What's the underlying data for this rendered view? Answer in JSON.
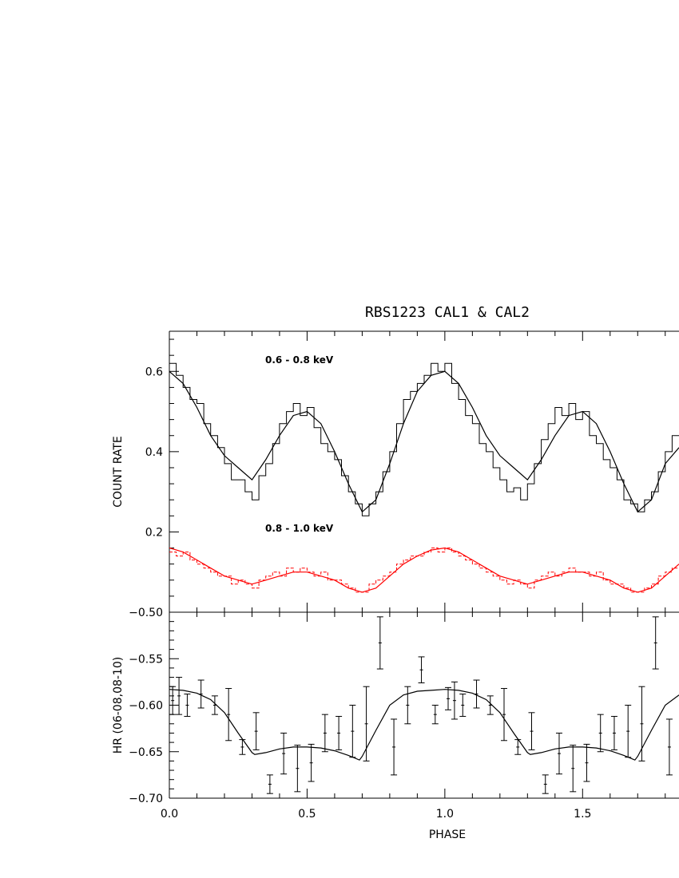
{
  "title": "RBS1223 CAL1 & CAL2",
  "chart_data": [
    {
      "type": "line",
      "panel": "top",
      "ylabel": "COUNT RATE",
      "xlim": [
        0.0,
        1.85
      ],
      "ylim": [
        0.0,
        0.7
      ],
      "yticks": [
        0.2,
        0.4,
        0.6
      ],
      "ytick_labels": [
        "0.2",
        "0.4",
        "0.6"
      ],
      "annotations": [
        "0.6 - 0.8 keV",
        "0.8 - 1.0 keV"
      ],
      "series": [
        {
          "color": "#000000",
          "style": "solid",
          "role": "model",
          "x": [
            0.0,
            0.05,
            0.1,
            0.15,
            0.2,
            0.25,
            0.3,
            0.35,
            0.4,
            0.45,
            0.5,
            0.55,
            0.6,
            0.65,
            0.7,
            0.75,
            0.8,
            0.85,
            0.9,
            0.95,
            1.0,
            1.05,
            1.1,
            1.15,
            1.2,
            1.25,
            1.3,
            1.35,
            1.4,
            1.45,
            1.5,
            1.55,
            1.6,
            1.65,
            1.7,
            1.75,
            1.8,
            1.85
          ],
          "y": [
            0.6,
            0.57,
            0.51,
            0.44,
            0.39,
            0.36,
            0.33,
            0.38,
            0.44,
            0.49,
            0.5,
            0.47,
            0.4,
            0.32,
            0.25,
            0.28,
            0.37,
            0.47,
            0.55,
            0.59,
            0.6,
            0.57,
            0.51,
            0.44,
            0.39,
            0.36,
            0.33,
            0.38,
            0.44,
            0.49,
            0.5,
            0.47,
            0.4,
            0.32,
            0.25,
            0.28,
            0.37,
            0.41
          ]
        },
        {
          "color": "#000000",
          "style": "histogram",
          "role": "data",
          "x": [
            0.0,
            0.025,
            0.05,
            0.075,
            0.1,
            0.125,
            0.15,
            0.175,
            0.2,
            0.225,
            0.25,
            0.275,
            0.3,
            0.325,
            0.35,
            0.375,
            0.4,
            0.425,
            0.45,
            0.475,
            0.5,
            0.525,
            0.55,
            0.575,
            0.6,
            0.625,
            0.65,
            0.675,
            0.7,
            0.725,
            0.75,
            0.775,
            0.8,
            0.825,
            0.85,
            0.875,
            0.9,
            0.925,
            0.95,
            0.975,
            1.0,
            1.025,
            1.05,
            1.075,
            1.1,
            1.125,
            1.15,
            1.175,
            1.2,
            1.225,
            1.25,
            1.275,
            1.3,
            1.325,
            1.35,
            1.375,
            1.4,
            1.425,
            1.45,
            1.475,
            1.5,
            1.525,
            1.55,
            1.575,
            1.6,
            1.625,
            1.65,
            1.675,
            1.7,
            1.725,
            1.75,
            1.775,
            1.8,
            1.825
          ],
          "y": [
            0.62,
            0.59,
            0.56,
            0.53,
            0.52,
            0.47,
            0.44,
            0.41,
            0.37,
            0.33,
            0.33,
            0.3,
            0.28,
            0.34,
            0.37,
            0.42,
            0.47,
            0.5,
            0.52,
            0.49,
            0.51,
            0.46,
            0.42,
            0.4,
            0.38,
            0.34,
            0.3,
            0.27,
            0.24,
            0.27,
            0.3,
            0.35,
            0.4,
            0.47,
            0.53,
            0.55,
            0.57,
            0.59,
            0.62,
            0.6,
            0.62,
            0.57,
            0.53,
            0.49,
            0.47,
            0.42,
            0.4,
            0.36,
            0.33,
            0.3,
            0.31,
            0.28,
            0.32,
            0.37,
            0.43,
            0.47,
            0.51,
            0.49,
            0.52,
            0.48,
            0.5,
            0.44,
            0.42,
            0.38,
            0.36,
            0.33,
            0.28,
            0.27,
            0.25,
            0.28,
            0.3,
            0.35,
            0.4,
            0.44
          ]
        },
        {
          "color": "#ff0000",
          "style": "solid",
          "role": "model",
          "x": [
            0.0,
            0.05,
            0.1,
            0.15,
            0.2,
            0.25,
            0.3,
            0.35,
            0.4,
            0.45,
            0.5,
            0.55,
            0.6,
            0.65,
            0.7,
            0.75,
            0.8,
            0.85,
            0.9,
            0.95,
            1.0,
            1.05,
            1.1,
            1.15,
            1.2,
            1.25,
            1.3,
            1.35,
            1.4,
            1.45,
            1.5,
            1.55,
            1.6,
            1.65,
            1.7,
            1.75,
            1.8,
            1.85
          ],
          "y": [
            0.16,
            0.15,
            0.13,
            0.11,
            0.09,
            0.08,
            0.07,
            0.08,
            0.09,
            0.1,
            0.1,
            0.09,
            0.08,
            0.06,
            0.05,
            0.06,
            0.09,
            0.12,
            0.14,
            0.155,
            0.16,
            0.15,
            0.13,
            0.11,
            0.09,
            0.08,
            0.07,
            0.08,
            0.09,
            0.1,
            0.1,
            0.09,
            0.08,
            0.06,
            0.05,
            0.06,
            0.09,
            0.12
          ]
        },
        {
          "color": "#ff0000",
          "style": "histogram-dashed",
          "role": "data",
          "x": [
            0.0,
            0.025,
            0.05,
            0.075,
            0.1,
            0.125,
            0.15,
            0.175,
            0.2,
            0.225,
            0.25,
            0.275,
            0.3,
            0.325,
            0.35,
            0.375,
            0.4,
            0.425,
            0.45,
            0.475,
            0.5,
            0.525,
            0.55,
            0.575,
            0.6,
            0.625,
            0.65,
            0.675,
            0.7,
            0.725,
            0.75,
            0.775,
            0.8,
            0.825,
            0.85,
            0.875,
            0.9,
            0.925,
            0.95,
            0.975,
            1.0,
            1.025,
            1.05,
            1.075,
            1.1,
            1.125,
            1.15,
            1.175,
            1.2,
            1.225,
            1.25,
            1.275,
            1.3,
            1.325,
            1.35,
            1.375,
            1.4,
            1.425,
            1.45,
            1.475,
            1.5,
            1.525,
            1.55,
            1.575,
            1.6,
            1.625,
            1.65,
            1.675,
            1.7,
            1.725,
            1.75,
            1.775,
            1.8,
            1.825
          ],
          "y": [
            0.15,
            0.14,
            0.15,
            0.13,
            0.12,
            0.11,
            0.1,
            0.09,
            0.09,
            0.07,
            0.08,
            0.07,
            0.06,
            0.08,
            0.09,
            0.1,
            0.09,
            0.11,
            0.1,
            0.11,
            0.1,
            0.09,
            0.1,
            0.08,
            0.08,
            0.07,
            0.06,
            0.05,
            0.05,
            0.07,
            0.08,
            0.09,
            0.1,
            0.12,
            0.13,
            0.14,
            0.14,
            0.15,
            0.16,
            0.15,
            0.16,
            0.15,
            0.14,
            0.13,
            0.12,
            0.11,
            0.1,
            0.09,
            0.08,
            0.07,
            0.08,
            0.07,
            0.06,
            0.08,
            0.09,
            0.1,
            0.09,
            0.1,
            0.11,
            0.1,
            0.1,
            0.09,
            0.1,
            0.08,
            0.07,
            0.07,
            0.06,
            0.05,
            0.05,
            0.06,
            0.07,
            0.09,
            0.1,
            0.11
          ]
        }
      ]
    },
    {
      "type": "scatter",
      "panel": "bottom",
      "xlabel": "PHASE",
      "ylabel": "HR (06-08,08-10)",
      "xlim": [
        0.0,
        1.85
      ],
      "ylim": [
        -0.7,
        -0.5
      ],
      "xticks": [
        0.0,
        0.5,
        1.0,
        1.5
      ],
      "xtick_labels": [
        "0.0",
        "0.5",
        "1.0",
        "1.5"
      ],
      "yticks": [
        -0.7,
        -0.65,
        -0.6,
        -0.55,
        -0.5
      ],
      "ytick_labels": [
        "−0.70",
        "−0.65",
        "−0.60",
        "−0.55",
        "−0.50"
      ],
      "series": [
        {
          "color": "#000000",
          "style": "solid",
          "role": "model",
          "x": [
            0.0,
            0.05,
            0.1,
            0.15,
            0.2,
            0.25,
            0.3,
            0.31,
            0.35,
            0.4,
            0.45,
            0.5,
            0.55,
            0.6,
            0.65,
            0.69,
            0.7,
            0.75,
            0.8,
            0.85,
            0.9,
            0.95,
            1.0,
            1.05,
            1.1,
            1.15,
            1.2,
            1.25,
            1.3,
            1.31,
            1.35,
            1.4,
            1.45,
            1.5,
            1.55,
            1.6,
            1.65,
            1.69,
            1.7,
            1.75,
            1.8,
            1.85
          ],
          "y": [
            -0.583,
            -0.584,
            -0.587,
            -0.594,
            -0.608,
            -0.63,
            -0.651,
            -0.653,
            -0.651,
            -0.647,
            -0.645,
            -0.645,
            -0.646,
            -0.649,
            -0.654,
            -0.659,
            -0.655,
            -0.627,
            -0.6,
            -0.589,
            -0.585,
            -0.584,
            -0.583,
            -0.584,
            -0.587,
            -0.594,
            -0.608,
            -0.63,
            -0.651,
            -0.653,
            -0.651,
            -0.647,
            -0.645,
            -0.645,
            -0.646,
            -0.649,
            -0.654,
            -0.659,
            -0.655,
            -0.627,
            -0.6,
            -0.589
          ]
        },
        {
          "color": "#000000",
          "style": "points-with-errorbars",
          "role": "data",
          "x": [
            0.012,
            0.035,
            0.065,
            0.115,
            0.165,
            0.215,
            0.265,
            0.315,
            0.365,
            0.415,
            0.465,
            0.515,
            0.565,
            0.615,
            0.665,
            0.715,
            0.765,
            0.815,
            0.865,
            0.915,
            0.965,
            1.012,
            1.035,
            1.065,
            1.115,
            1.165,
            1.215,
            1.265,
            1.315,
            1.365,
            1.415,
            1.465,
            1.515,
            1.565,
            1.615,
            1.665,
            1.715,
            1.765,
            1.815
          ],
          "y": [
            -0.595,
            -0.59,
            -0.6,
            -0.588,
            -0.6,
            -0.61,
            -0.645,
            -0.628,
            -0.685,
            -0.652,
            -0.668,
            -0.662,
            -0.63,
            -0.63,
            -0.628,
            -0.62,
            -0.533,
            -0.645,
            -0.6,
            -0.562,
            -0.61,
            -0.593,
            -0.595,
            -0.6,
            -0.588,
            -0.6,
            -0.61,
            -0.645,
            -0.628,
            -0.685,
            -0.652,
            -0.668,
            -0.662,
            -0.63,
            -0.63,
            -0.628,
            -0.62,
            -0.533,
            -0.645
          ],
          "yerr": [
            0.015,
            0.02,
            0.012,
            0.015,
            0.01,
            0.028,
            0.008,
            0.02,
            0.01,
            0.022,
            0.025,
            0.02,
            0.02,
            0.018,
            0.028,
            0.04,
            0.028,
            0.03,
            0.02,
            0.014,
            0.01,
            0.012,
            0.02,
            0.012,
            0.015,
            0.01,
            0.028,
            0.008,
            0.02,
            0.01,
            0.022,
            0.025,
            0.02,
            0.02,
            0.018,
            0.028,
            0.04,
            0.028,
            0.03
          ]
        }
      ]
    }
  ]
}
